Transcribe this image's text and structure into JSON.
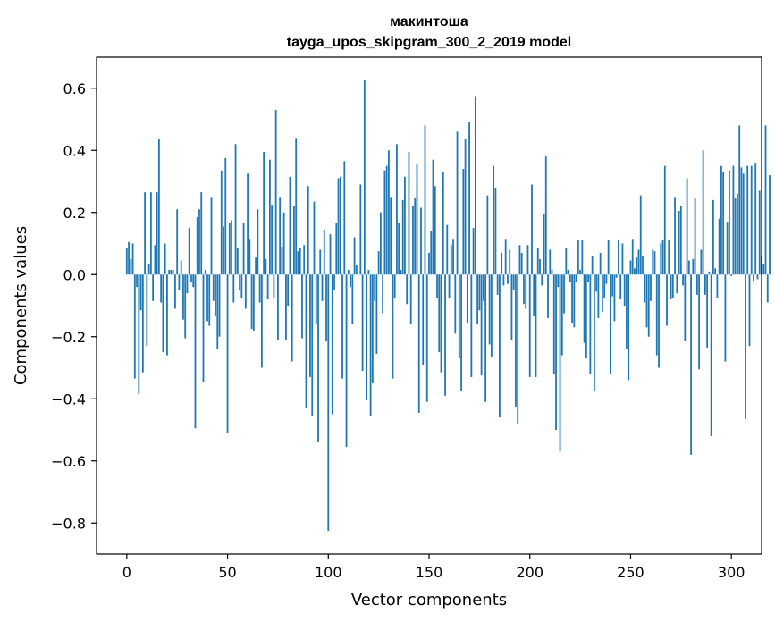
{
  "chart_data": {
    "type": "bar",
    "title_line1": "макинтоша",
    "title_line2": "tayga_upos_skipgram_300_2_2019 model",
    "xlabel": "Vector components",
    "ylabel": "Components values",
    "xlim": [
      -15,
      315
    ],
    "ylim": [
      -0.9,
      0.7
    ],
    "xticks": [
      0,
      50,
      100,
      150,
      200,
      250,
      300
    ],
    "yticks": [
      -0.8,
      -0.6,
      -0.4,
      -0.2,
      0.0,
      0.2,
      0.4,
      0.6
    ],
    "ytick_labels": [
      "−0.8",
      "−0.6",
      "−0.4",
      "−0.2",
      "0.0",
      "0.2",
      "0.4",
      "0.6"
    ],
    "xtick_labels": [
      "0",
      "50",
      "100",
      "150",
      "200",
      "250",
      "300"
    ],
    "bar_color": "#1f77b4",
    "values": [
      0.085,
      0.105,
      0.05,
      0.1,
      -0.335,
      -0.04,
      -0.385,
      -0.115,
      -0.315,
      0.265,
      -0.23,
      0.035,
      0.265,
      -0.085,
      0.095,
      0.265,
      0.435,
      -0.09,
      -0.25,
      0.1,
      -0.26,
      0.015,
      0.015,
      0.015,
      -0.11,
      0.21,
      -0.05,
      0.045,
      -0.145,
      -0.205,
      -0.06,
      0.15,
      -0.025,
      -0.04,
      -0.495,
      0.185,
      0.21,
      0.265,
      -0.345,
      0.015,
      -0.15,
      -0.165,
      0.25,
      -0.085,
      -0.135,
      -0.24,
      -0.2,
      0.335,
      0.155,
      0.375,
      -0.51,
      0.165,
      0.175,
      -0.09,
      0.42,
      0.085,
      -0.05,
      -0.075,
      0.165,
      -0.11,
      0.325,
      0.115,
      -0.175,
      -0.18,
      0.055,
      0.21,
      -0.09,
      -0.3,
      0.395,
      0.05,
      -0.08,
      0.37,
      0.225,
      -0.075,
      0.53,
      -0.21,
      0.25,
      0.09,
      0.2,
      -0.21,
      -0.1,
      0.315,
      -0.28,
      0.22,
      0.44,
      0.075,
      0.085,
      -0.205,
      0.095,
      -0.43,
      0.285,
      -0.33,
      -0.455,
      0.235,
      -0.16,
      -0.54,
      0.08,
      -0.085,
      0.145,
      -0.215,
      -0.825,
      0.13,
      -0.45,
      -0.05,
      0.165,
      0.31,
      0.315,
      -0.335,
      0.365,
      -0.555,
      0.015,
      -0.04,
      -0.16,
      0.12,
      0.03,
      0.0,
      0.29,
      -0.31,
      0.625,
      -0.405,
      0.015,
      -0.455,
      -0.35,
      -0.085,
      -0.255,
      0.075,
      0.2,
      -0.125,
      0.335,
      0.35,
      0.4,
      0.25,
      -0.335,
      -0.075,
      0.42,
      0.165,
      0.015,
      0.24,
      0.315,
      -0.095,
      0.395,
      -0.16,
      0.22,
      0.245,
      0.355,
      -0.445,
      0.215,
      -0.29,
      0.48,
      -0.41,
      0.07,
      0.14,
      0.37,
      0.285,
      -0.075,
      -0.25,
      -0.315,
      0.33,
      -0.39,
      0.16,
      -0.075,
      0.095,
      0.115,
      -0.19,
      0.46,
      -0.27,
      -0.375,
      0.34,
      0.435,
      -0.155,
      0.49,
      -0.33,
      0.15,
      0.575,
      -0.16,
      -0.115,
      -0.325,
      -0.085,
      -0.41,
      0.255,
      -0.225,
      -0.265,
      0.35,
      0.28,
      -0.065,
      -0.46,
      0.07,
      -0.035,
      0.115,
      -0.03,
      0.08,
      -0.21,
      -0.05,
      -0.425,
      -0.48,
      0.095,
      0.07,
      -0.095,
      -0.11,
      0.095,
      -0.33,
      0.29,
      -0.135,
      -0.33,
      0.085,
      0.05,
      -0.035,
      0.195,
      0.38,
      -0.14,
      0.08,
      0.015,
      -0.32,
      -0.5,
      -0.04,
      -0.57,
      -0.26,
      -0.125,
      0.085,
      0.015,
      -0.025,
      -0.155,
      -0.17,
      -0.025,
      0.11,
      0.015,
      0.11,
      -0.22,
      -0.27,
      -0.025,
      -0.32,
      0.06,
      -0.375,
      -0.055,
      -0.14,
      0.07,
      -0.12,
      -0.075,
      -0.03,
      0.11,
      -0.32,
      -0.07,
      -0.15,
      -0.01,
      0.11,
      -0.08,
      0.1,
      -0.1,
      -0.24,
      -0.34,
      0.045,
      0.115,
      0.02,
      0.055,
      0.08,
      0.255,
      0.06,
      -0.09,
      -0.17,
      -0.2,
      -0.085,
      0.08,
      0.075,
      -0.26,
      -0.3,
      0.1,
      0.11,
      0.35,
      -0.165,
      0.11,
      -0.08,
      -0.075,
      0.25,
      -0.06,
      0.205,
      0.22,
      -0.035,
      -0.215,
      0.31,
      0.045,
      -0.58,
      0.05,
      0.245,
      -0.065,
      -0.305,
      0.08,
      0.4,
      -0.065,
      -0.235,
      0.01,
      -0.52,
      0.24,
      0.02,
      -0.075,
      0.18,
      0.35,
      0.33,
      -0.28,
      0.17,
      0.335,
      -0.005,
      0.35,
      0.245,
      0.26,
      0.48,
      0.345,
      0.325,
      -0.465,
      0.35,
      -0.23,
      0.35,
      -0.02,
      0.36,
      -0.015,
      0.27,
      0.06,
      0.035,
      0.48,
      -0.09,
      0.32
    ]
  }
}
